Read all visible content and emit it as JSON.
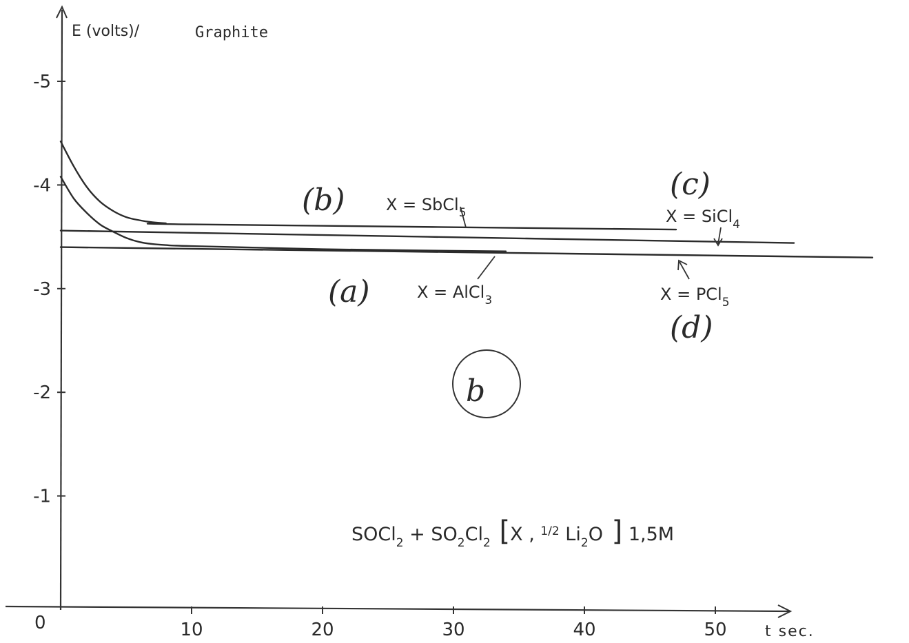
{
  "chart_data": {
    "type": "line",
    "ylabel": "E (volts)/",
    "electrode": "Graphite",
    "xlabel": "t sec.",
    "origin_label": "0",
    "xlim": [
      0,
      62
    ],
    "ylim": [
      0,
      -5.5
    ],
    "x_ticks": [
      {
        "value": 10,
        "label": "10"
      },
      {
        "value": 20,
        "label": "20"
      },
      {
        "value": 30,
        "label": "30"
      },
      {
        "value": 40,
        "label": "40"
      },
      {
        "value": 50,
        "label": "50"
      }
    ],
    "y_ticks": [
      {
        "value": -5,
        "label": "-5"
      },
      {
        "value": -4,
        "label": "-4"
      },
      {
        "value": -3,
        "label": "-3"
      },
      {
        "value": -2,
        "label": "-2"
      },
      {
        "value": -1,
        "label": "-1"
      }
    ],
    "series": [
      {
        "id": "b",
        "label": "(b)",
        "x_prefix": "X = ",
        "compound": "SbCl",
        "subscript": "5",
        "x": [
          0,
          1,
          2,
          3,
          4,
          5,
          6,
          7,
          8,
          10,
          47
        ],
        "y": [
          -4.42,
          -4.18,
          -3.98,
          -3.84,
          -3.75,
          -3.69,
          -3.66,
          -3.64,
          -3.63,
          -3.62,
          -3.57
        ]
      },
      {
        "id": "a",
        "label": "(a)",
        "x_prefix": "X = ",
        "compound": "AlCl",
        "subscript": "3",
        "x": [
          0,
          1,
          2,
          3,
          4,
          5,
          6,
          7,
          8,
          10,
          20,
          34
        ],
        "y": [
          -4.08,
          -3.87,
          -3.73,
          -3.62,
          -3.55,
          -3.49,
          -3.45,
          -3.43,
          -3.42,
          -3.41,
          -3.38,
          -3.36
        ]
      },
      {
        "id": "c",
        "label": "(c)",
        "x_prefix": "X = ",
        "compound": "SiCl",
        "subscript": "4",
        "x": [
          0,
          56
        ],
        "y": [
          -3.56,
          -3.44
        ]
      },
      {
        "id": "d",
        "label": "(d)",
        "x_prefix": "X = ",
        "compound": "PCl",
        "subscript": "5",
        "x": [
          0,
          62
        ],
        "y": [
          -3.4,
          -3.3
        ]
      }
    ],
    "formula": "SOCl2 + SO2Cl2 [X, 1/2 Li2O] 1,5M",
    "circle_mark": "b"
  }
}
